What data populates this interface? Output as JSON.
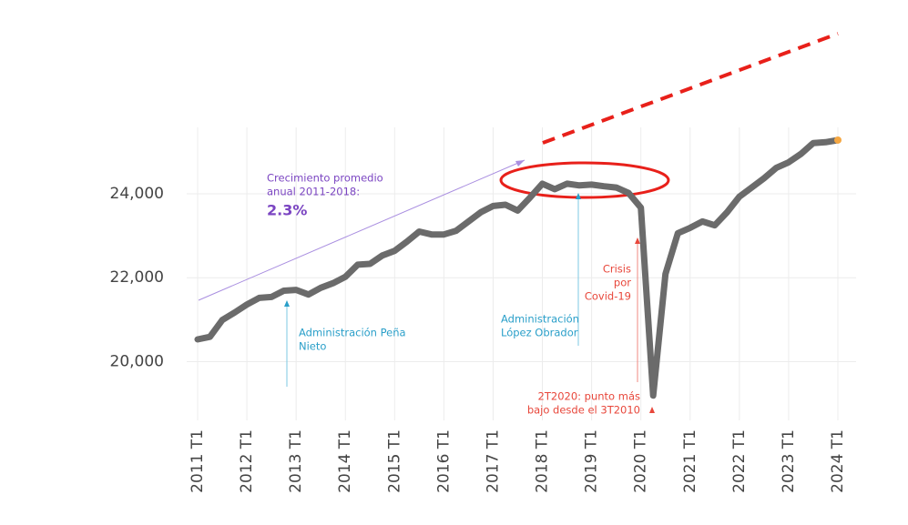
{
  "chart_data": {
    "type": "line",
    "categories": [
      "2011 T1",
      null,
      null,
      null,
      "2012 T1",
      null,
      null,
      null,
      "2013 T1",
      null,
      null,
      null,
      "2014 T1",
      null,
      null,
      null,
      "2015 T1",
      null,
      null,
      null,
      "2016 T1",
      null,
      null,
      null,
      "2017 T1",
      null,
      null,
      null,
      "2018 T1",
      null,
      null,
      null,
      "2019 T1",
      null,
      null,
      null,
      "2020 T1",
      null,
      null,
      null,
      "2021 T1",
      null,
      null,
      null,
      "2022 T1",
      null,
      null,
      null,
      "2023 T1",
      null,
      null,
      null,
      "2024 T1"
    ],
    "values": [
      20530,
      20590,
      20990,
      21170,
      21360,
      21520,
      21540,
      21690,
      21710,
      21600,
      21760,
      21870,
      22020,
      22310,
      22330,
      22530,
      22640,
      22860,
      23100,
      23030,
      23030,
      23120,
      23340,
      23560,
      23710,
      23740,
      23600,
      23910,
      24240,
      24110,
      24240,
      24200,
      24220,
      24180,
      24150,
      24020,
      23670,
      19190,
      22090,
      23060,
      23190,
      23340,
      23250,
      23560,
      23930,
      24150,
      24370,
      24620,
      24750,
      24950,
      25210,
      25230,
      25280
    ],
    "color": "#6b6b6b",
    "ylim": [
      18600,
      25800
    ],
    "yticks": [
      {
        "value": 20000,
        "label": "20,000"
      },
      {
        "value": 22000,
        "label": "22,000"
      },
      {
        "value": 24000,
        "label": "24,000"
      }
    ],
    "grid": true,
    "annotations": {
      "growth": [
        "Crecimiento promedio",
        "anual 2011-2018:"
      ],
      "growth_value": "2.3%",
      "pena": [
        "Administración Peña",
        "Nieto"
      ],
      "amlo": [
        "Administración",
        "López Obrador"
      ],
      "covid": [
        "Crisis",
        "por",
        "Covid-19"
      ],
      "low": [
        "2T2020: punto más",
        "bajo desde el 3T2010"
      ]
    }
  }
}
